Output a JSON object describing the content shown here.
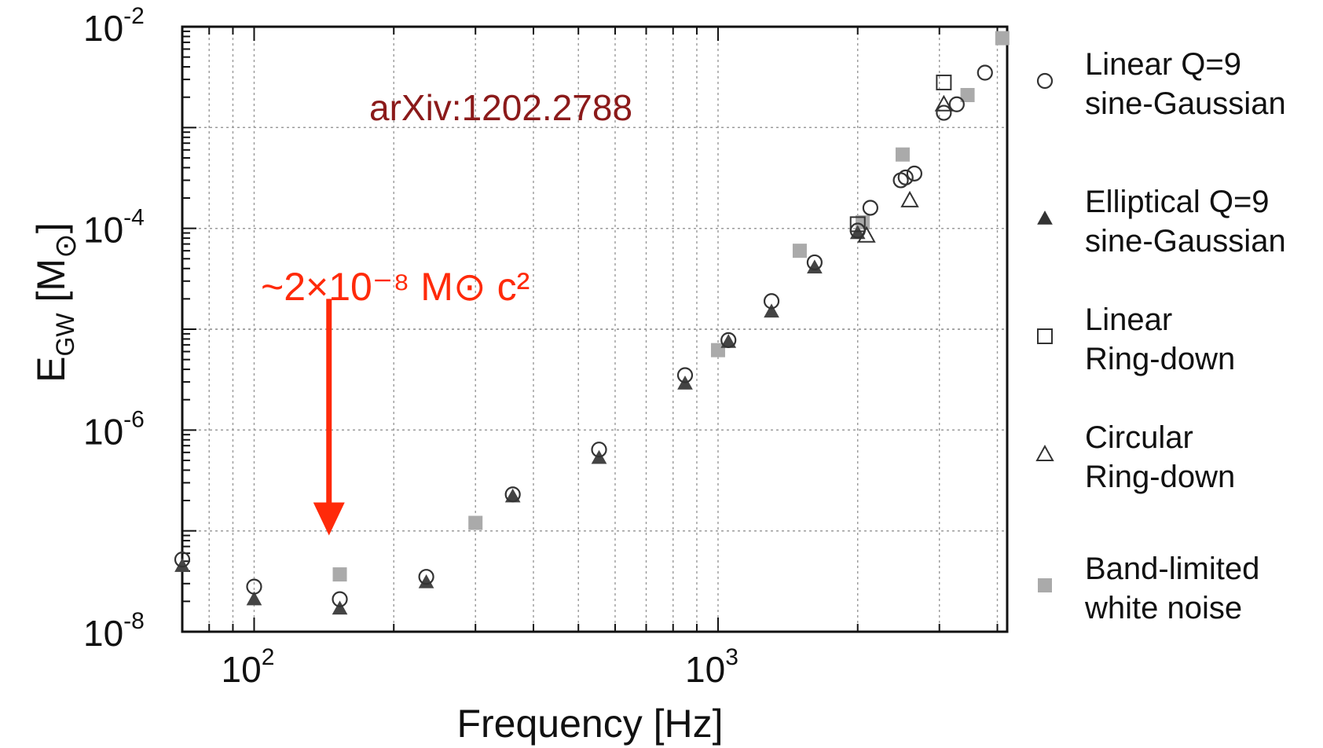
{
  "chart_data": {
    "type": "scatter",
    "xlabel": "Frequency [Hz]",
    "ylabel": "E_GW [M_⊙]",
    "xscale": "log",
    "yscale": "log",
    "xlim": [
      70,
      4200
    ],
    "ylim": [
      1e-08,
      0.01
    ],
    "grid": true,
    "legend_position": "right",
    "x_ticks": [
      {
        "value": 100,
        "base": "10",
        "exp": "2"
      },
      {
        "value": 1000,
        "base": "10",
        "exp": "3"
      }
    ],
    "y_ticks": [
      {
        "value": 1e-08,
        "base": "10",
        "exp": "-8"
      },
      {
        "value": 1e-06,
        "base": "10",
        "exp": "-6"
      },
      {
        "value": 0.0001,
        "base": "10",
        "exp": "-4"
      },
      {
        "value": 0.01,
        "base": "10",
        "exp": "-2"
      }
    ],
    "series": [
      {
        "name_lines": [
          "Linear Q=9",
          "sine-Gaussian"
        ],
        "marker": "circle-open",
        "color": "#333333",
        "points": [
          [
            70,
            5.2e-08
          ],
          [
            100,
            2.8e-08
          ],
          [
            153,
            2.1e-08
          ],
          [
            235,
            3.5e-08
          ],
          [
            361,
            2.3e-07
          ],
          [
            554,
            6.4e-07
          ],
          [
            849,
            3.5e-06
          ],
          [
            1053,
            7.8e-06
          ],
          [
            1304,
            1.9e-05
          ],
          [
            1615,
            4.6e-05
          ],
          [
            2000,
            9.5e-05
          ],
          [
            2130,
            0.00016
          ],
          [
            2477,
            0.0003
          ],
          [
            2537,
            0.00032
          ],
          [
            2650,
            0.00035
          ],
          [
            3067,
            0.0014
          ],
          [
            3270,
            0.0017
          ],
          [
            3762,
            0.0035
          ]
        ]
      },
      {
        "name_lines": [
          "Elliptical Q=9",
          "sine-Gaussian"
        ],
        "marker": "triangle-filled",
        "color": "#444444",
        "points": [
          [
            70,
            4.5e-08
          ],
          [
            100,
            2.1e-08
          ],
          [
            153,
            1.7e-08
          ],
          [
            235,
            3.1e-08
          ],
          [
            361,
            2.2e-07
          ],
          [
            554,
            5.3e-07
          ],
          [
            849,
            2.9e-06
          ],
          [
            1053,
            7.5e-06
          ],
          [
            1304,
            1.5e-05
          ],
          [
            1615,
            4.1e-05
          ],
          [
            2000,
            9e-05
          ]
        ]
      },
      {
        "name_lines": [
          "Linear",
          "Ring-down"
        ],
        "marker": "square-open",
        "color": "#333333",
        "points": [
          [
            2000,
            0.00011
          ],
          [
            3067,
            0.0028
          ]
        ]
      },
      {
        "name_lines": [
          "Circular",
          "Ring-down"
        ],
        "marker": "triangle-open",
        "color": "#333333",
        "points": [
          [
            2090,
            8.5e-05
          ],
          [
            2590,
            0.00019
          ],
          [
            3067,
            0.0017
          ]
        ]
      },
      {
        "name_lines": [
          "Band-limited",
          "white noise"
        ],
        "marker": "square-filled",
        "color": "#aaaaaa",
        "points": [
          [
            153,
            3.7e-08
          ],
          [
            300,
            1.2e-07
          ],
          [
            1000,
            6.2e-06
          ],
          [
            1500,
            6e-05
          ],
          [
            2050,
            0.000115
          ],
          [
            2500,
            0.00054
          ],
          [
            3450,
            0.0021
          ],
          [
            4100,
            0.0077
          ]
        ]
      }
    ],
    "annotations": {
      "reference": {
        "text": "arXiv:1202.2788",
        "color": "#8b1a1a"
      },
      "energy": {
        "text": "~2×10⁻⁸  M⊙ c²",
        "color": "#ff2a0a"
      },
      "arrow": {
        "color": "#ff2a0a",
        "from": [
          145,
          2e-05
        ],
        "to": [
          145,
          9e-08
        ]
      }
    }
  }
}
